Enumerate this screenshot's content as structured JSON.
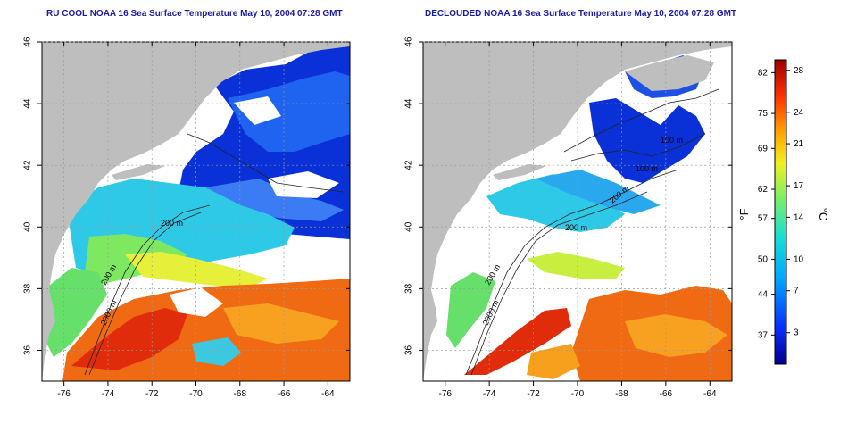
{
  "panels": [
    {
      "title": "RU COOL NOAA 16 Sea Surface Temperature May 10, 2004 07:28 GMT",
      "contour_labels": [
        "200 m",
        "200 m",
        "2000 m"
      ]
    },
    {
      "title": "DECLOUDED NOAA 16 Sea Surface Temperature May 10, 2004 07:28 GMT",
      "contour_labels": [
        "100 m",
        "100 m",
        "200 m",
        "200 m",
        "200 m",
        "2000 m"
      ]
    }
  ],
  "axes": {
    "lon_ticks": [
      "-76",
      "-74",
      "-72",
      "-70",
      "-68",
      "-66",
      "-64"
    ],
    "lat_ticks": [
      "36",
      "38",
      "40",
      "42",
      "44",
      "46"
    ]
  },
  "colorbar": {
    "fahrenheit_label": "°F",
    "celsius_label": "°C",
    "fahrenheit_ticks": [
      "82",
      "75",
      "69",
      "62",
      "57",
      "50",
      "44",
      "37"
    ],
    "celsius_ticks": [
      "28",
      "24",
      "21",
      "17",
      "14",
      "10",
      "7",
      "3"
    ]
  },
  "colors": {
    "land": "#bebebe",
    "cloud": "#ffffff",
    "cold": "#0a28c8",
    "warm": "#e23a10",
    "title": "#1a1aa8"
  }
}
